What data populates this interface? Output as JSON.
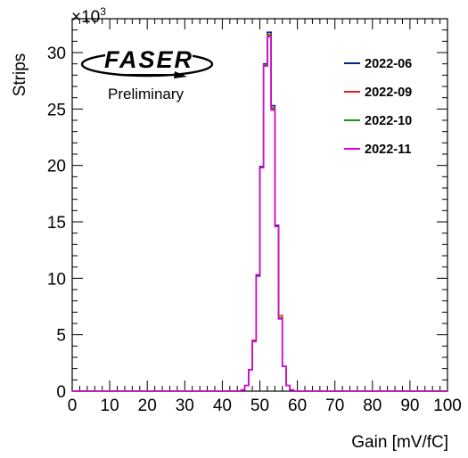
{
  "chart_data": {
    "type": "step-histogram",
    "xlabel": "Gain [mV/fC]",
    "ylabel": "Strips",
    "y_multiplier": "×10",
    "y_multiplier_exponent": "3",
    "xlim": [
      0,
      100
    ],
    "ylim": [
      0,
      33000
    ],
    "x_ticks": [
      "0",
      "10",
      "20",
      "30",
      "40",
      "50",
      "60",
      "70",
      "80",
      "90",
      "100"
    ],
    "y_ticks": [
      "0",
      "5",
      "10",
      "15",
      "20",
      "25",
      "30"
    ],
    "bin_width": 1,
    "legend_placement": "top-right",
    "logo_text": "FASER",
    "logo_subtitle": "Preliminary",
    "series": [
      {
        "name": "2022-06",
        "color": "#0a1e8c",
        "bins": [
          [
            45,
            100
          ],
          [
            46,
            500
          ],
          [
            47,
            1900
          ],
          [
            48,
            4500
          ],
          [
            49,
            10300
          ],
          [
            50,
            19900
          ],
          [
            51,
            29000
          ],
          [
            52,
            31800
          ],
          [
            53,
            25300
          ],
          [
            54,
            14700
          ],
          [
            55,
            6500
          ],
          [
            56,
            2200
          ],
          [
            57,
            500
          ],
          [
            58,
            100
          ]
        ]
      },
      {
        "name": "2022-09",
        "color": "#ee1c1c",
        "bins": [
          [
            45,
            100
          ],
          [
            46,
            500
          ],
          [
            47,
            1900
          ],
          [
            48,
            4400
          ],
          [
            49,
            10200
          ],
          [
            50,
            19800
          ],
          [
            51,
            28900
          ],
          [
            52,
            31600
          ],
          [
            53,
            25100
          ],
          [
            54,
            14600
          ],
          [
            55,
            6700
          ],
          [
            56,
            2200
          ],
          [
            57,
            500
          ],
          [
            58,
            100
          ]
        ]
      },
      {
        "name": "2022-10",
        "color": "#139a13",
        "bins": [
          [
            45,
            100
          ],
          [
            46,
            500
          ],
          [
            47,
            1900
          ],
          [
            48,
            4500
          ],
          [
            49,
            10200
          ],
          [
            50,
            19800
          ],
          [
            51,
            28900
          ],
          [
            52,
            31500
          ],
          [
            53,
            25000
          ],
          [
            54,
            14600
          ],
          [
            55,
            6500
          ],
          [
            56,
            2200
          ],
          [
            57,
            500
          ],
          [
            58,
            100
          ]
        ]
      },
      {
        "name": "2022-11",
        "color": "#e000e0",
        "bins": [
          [
            45,
            100
          ],
          [
            46,
            500
          ],
          [
            47,
            1900
          ],
          [
            48,
            4500
          ],
          [
            49,
            10200
          ],
          [
            50,
            19800
          ],
          [
            51,
            28800
          ],
          [
            52,
            31400
          ],
          [
            53,
            24900
          ],
          [
            54,
            14600
          ],
          [
            55,
            6400
          ],
          [
            56,
            2200
          ],
          [
            57,
            500
          ],
          [
            58,
            100
          ]
        ]
      }
    ]
  }
}
